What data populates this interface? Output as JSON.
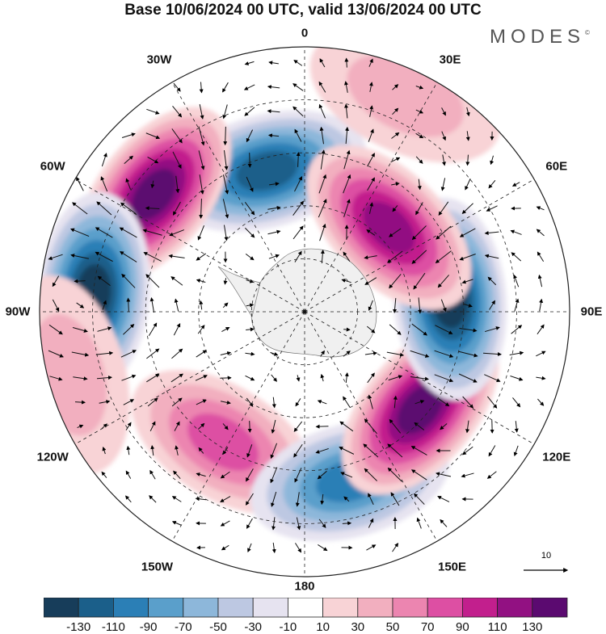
{
  "title": "Base 10/06/2024 00 UTC, valid 13/06/2024 00 UTC",
  "brand": "MODES",
  "brand_mark": "©",
  "longitude_labels": [
    "0",
    "30E",
    "60E",
    "90E",
    "120E",
    "150E",
    "180",
    "150W",
    "120W",
    "90W",
    "60W",
    "30W"
  ],
  "reference_vector": {
    "value": "10"
  },
  "colorbar": {
    "tick_labels": [
      "-130",
      "-110",
      "-90",
      "-70",
      "-50",
      "-30",
      "-10",
      "10",
      "30",
      "50",
      "70",
      "90",
      "110",
      "130"
    ],
    "colors": [
      "#173d5a",
      "#1b5f8a",
      "#2b7fb6",
      "#5a9fcb",
      "#8db7da",
      "#bdc8e2",
      "#e6e3f0",
      "#ffffff",
      "#f8d3d6",
      "#f2afbf",
      "#ec85b0",
      "#dd4fa3",
      "#c21f8d",
      "#921182",
      "#5b0a70"
    ]
  },
  "features": [
    {
      "label": "negative-anomaly",
      "lon": -15,
      "dist": 0.55,
      "value": -110
    },
    {
      "label": "positive-anomaly",
      "lon": -52,
      "dist": 0.72,
      "value": 130
    },
    {
      "label": "negative-anomaly",
      "lon": -85,
      "dist": 0.8,
      "value": -130
    },
    {
      "label": "positive-anomaly",
      "lon": -105,
      "dist": 0.92,
      "value": 30
    },
    {
      "label": "positive-anomaly",
      "lon": -148,
      "dist": 0.58,
      "value": 70
    },
    {
      "label": "negative-anomaly",
      "lon": 165,
      "dist": 0.66,
      "value": -90
    },
    {
      "label": "positive-anomaly",
      "lon": 130,
      "dist": 0.57,
      "value": 130
    },
    {
      "label": "negative-anomaly",
      "lon": 85,
      "dist": 0.55,
      "value": -130
    },
    {
      "label": "positive-anomaly",
      "lon": 45,
      "dist": 0.45,
      "value": 110
    },
    {
      "label": "positive-anomaly",
      "lon": 25,
      "dist": 0.9,
      "value": 30
    }
  ]
}
